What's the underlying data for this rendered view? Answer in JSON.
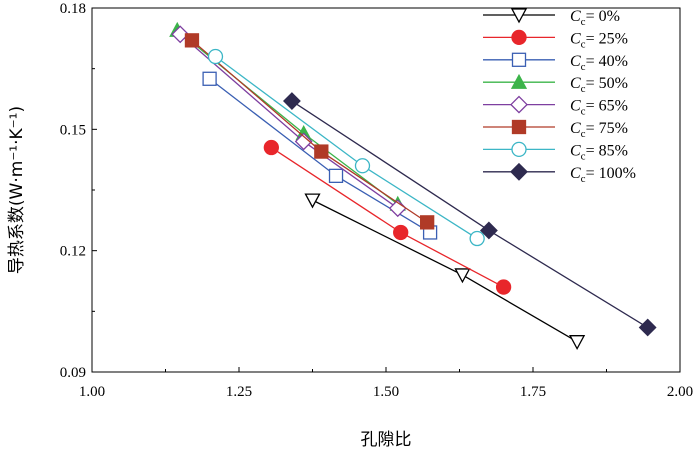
{
  "chart_data": {
    "type": "line",
    "xlabel": "孔隙比",
    "ylabel": "导热系数(W·m⁻¹·K⁻¹)",
    "xlim": [
      1.0,
      2.0
    ],
    "ylim": [
      0.09,
      0.18
    ],
    "xticks": [
      "1.00",
      "1.25",
      "1.50",
      "1.75",
      "2.00"
    ],
    "yticks": [
      "0.09",
      "0.12",
      "0.15",
      "0.18"
    ],
    "grid": false,
    "legend_position": "top-right",
    "legend_prefix": "C",
    "legend_subscript": "c",
    "series": [
      {
        "name": "= 0%",
        "color": "#000000",
        "marker": "triangle-down-open",
        "points": [
          [
            1.375,
            0.1325
          ],
          [
            1.63,
            0.114
          ],
          [
            1.825,
            0.0975
          ]
        ]
      },
      {
        "name": "= 25%",
        "color": "#e8262b",
        "marker": "circle-filled",
        "points": [
          [
            1.305,
            0.1455
          ],
          [
            1.525,
            0.1245
          ],
          [
            1.7,
            0.111
          ]
        ]
      },
      {
        "name": "= 40%",
        "color": "#3a5fb3",
        "marker": "square-open",
        "points": [
          [
            1.2,
            0.1625
          ],
          [
            1.415,
            0.1385
          ],
          [
            1.575,
            0.1245
          ]
        ]
      },
      {
        "name": "= 50%",
        "color": "#3cb44a",
        "marker": "triangle-up-filled",
        "points": [
          [
            1.145,
            0.1745
          ],
          [
            1.36,
            0.149
          ],
          [
            1.52,
            0.1315
          ]
        ]
      },
      {
        "name": "= 65%",
        "color": "#7e3fa0",
        "marker": "diamond-open",
        "points": [
          [
            1.15,
            0.1735
          ],
          [
            1.36,
            0.147
          ],
          [
            1.52,
            0.1305
          ]
        ]
      },
      {
        "name": "= 75%",
        "color": "#b03a27",
        "marker": "square-filled",
        "points": [
          [
            1.17,
            0.172
          ],
          [
            1.39,
            0.1445
          ],
          [
            1.57,
            0.127
          ]
        ]
      },
      {
        "name": "= 85%",
        "color": "#3cb6c6",
        "marker": "circle-open",
        "points": [
          [
            1.21,
            0.168
          ],
          [
            1.46,
            0.141
          ],
          [
            1.655,
            0.123
          ]
        ]
      },
      {
        "name": "= 100%",
        "color": "#2e2a4f",
        "marker": "diamond-filled",
        "points": [
          [
            1.34,
            0.157
          ],
          [
            1.675,
            0.125
          ],
          [
            1.945,
            0.101
          ]
        ]
      }
    ]
  }
}
